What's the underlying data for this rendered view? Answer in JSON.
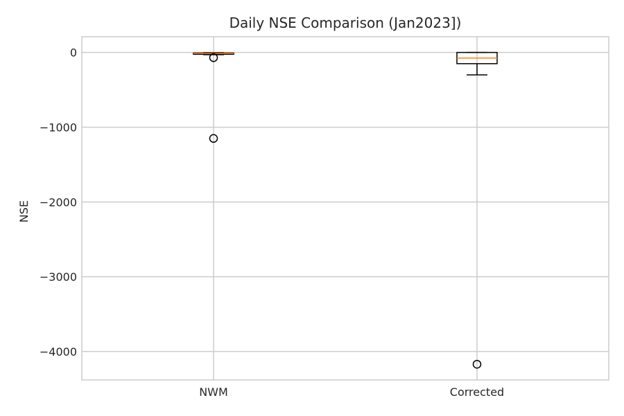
{
  "chart_data": {
    "type": "boxplot",
    "title": "Daily NSE Comparison (Jan2023])",
    "xlabel": "",
    "ylabel": "NSE",
    "ylim": [
      -4380,
      210
    ],
    "yticks": [
      0,
      -1000,
      -2000,
      -3000,
      -4000
    ],
    "ytick_labels": [
      "0",
      "−1000",
      "−2000",
      "−3000",
      "−4000"
    ],
    "grid": true,
    "categories": [
      "NWM",
      "Corrected"
    ],
    "boxes": [
      {
        "name": "NWM",
        "whisker_low": -30,
        "q1": -25,
        "median": -15,
        "q3": -8,
        "whisker_high": -5,
        "outliers": [
          -70,
          -1150
        ]
      },
      {
        "name": "Corrected",
        "whisker_low": -300,
        "q1": -150,
        "median": -75,
        "q3": 0,
        "whisker_high": 0,
        "outliers": [
          -4170
        ]
      }
    ],
    "colors": {
      "box": "#000000",
      "median": "#ff7f0e",
      "grid": "#cccccc",
      "spine": "#cccccc",
      "text": "#262626"
    }
  }
}
